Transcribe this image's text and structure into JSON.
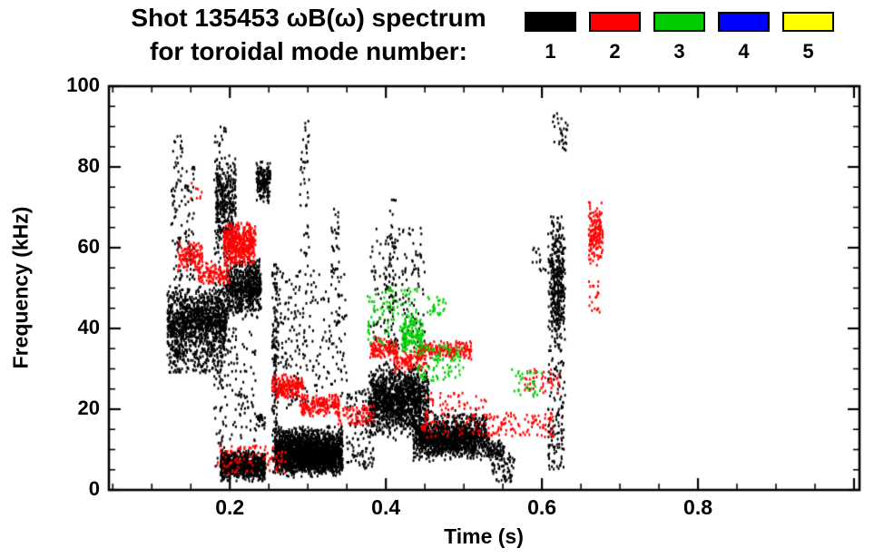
{
  "legend": {
    "items": [
      {
        "label": "1",
        "color": "#000000"
      },
      {
        "label": "2",
        "color": "#ff0000"
      },
      {
        "label": "3",
        "color": "#00cc00"
      },
      {
        "label": "4",
        "color": "#0000ff"
      },
      {
        "label": "5",
        "color": "#ffff00"
      }
    ]
  },
  "chart_data": {
    "type": "scatter",
    "title": "Shot 135453 ωB(ω) spectrum",
    "subtitle": "for toroidal mode number:",
    "xlabel": "Time (s)",
    "ylabel": "Frequency (kHz)",
    "xlim": [
      0.045,
      1.007
    ],
    "ylim": [
      0,
      100
    ],
    "x_major_ticks": [
      0.2,
      0.4,
      0.6,
      0.8,
      1.0
    ],
    "x_tick_labels": [
      {
        "v": 0.2,
        "label": "0.2"
      },
      {
        "v": 0.4,
        "label": "0.4"
      },
      {
        "v": 0.6,
        "label": "0.6"
      },
      {
        "v": 0.8,
        "label": "0.8"
      }
    ],
    "x_major_step": 0.2,
    "x_minor_step": 0.05,
    "y_major_ticks": [
      0,
      20,
      40,
      60,
      80,
      100
    ],
    "y_tick_labels": [
      {
        "v": 0,
        "label": "0"
      },
      {
        "v": 20,
        "label": "20"
      },
      {
        "v": 40,
        "label": "40"
      },
      {
        "v": 60,
        "label": "60"
      },
      {
        "v": 80,
        "label": "80"
      },
      {
        "v": 100,
        "label": "100"
      }
    ],
    "y_major_step": 20,
    "y_minor_step": 5,
    "grid": false,
    "legend_position": "top-right",
    "series": [
      {
        "name": "n=1",
        "mode": 1,
        "color": "#000000",
        "clusters": [
          {
            "t": [
              0.12,
              0.196
            ],
            "f": [
              33,
              51
            ],
            "n": 1100
          },
          {
            "t": [
              0.122,
              0.192
            ],
            "f": [
              29,
              35
            ],
            "n": 160,
            "u": true
          },
          {
            "t": [
              0.125,
              0.14
            ],
            "f": [
              52,
              88
            ],
            "n": 70,
            "u": true
          },
          {
            "t": [
              0.142,
              0.155
            ],
            "f": [
              52,
              80
            ],
            "n": 60,
            "u": true
          },
          {
            "t": [
              0.18,
              0.196
            ],
            "f": [
              5,
              90
            ],
            "n": 150,
            "u": true
          },
          {
            "t": [
              0.182,
              0.208
            ],
            "f": [
              58,
              83
            ],
            "n": 320
          },
          {
            "t": [
              0.195,
              0.24
            ],
            "f": [
              42,
              58
            ],
            "n": 650
          },
          {
            "t": [
              0.188,
              0.246
            ],
            "f": [
              2,
              10
            ],
            "n": 750
          },
          {
            "t": [
              0.196,
              0.234
            ],
            "f": [
              12,
              40
            ],
            "n": 90,
            "u": true
          },
          {
            "t": [
              0.234,
              0.252
            ],
            "f": [
              71,
              82
            ],
            "n": 170
          },
          {
            "t": [
              0.234,
              0.245
            ],
            "f": [
              15,
              20
            ],
            "n": 25
          },
          {
            "t": [
              0.254,
              0.262
            ],
            "f": [
              4,
              56
            ],
            "n": 160,
            "u": true
          },
          {
            "t": [
              0.258,
              0.345
            ],
            "f": [
              3,
              16
            ],
            "n": 1700
          },
          {
            "t": [
              0.265,
              0.335
            ],
            "f": [
              4,
              12
            ],
            "n": 800
          },
          {
            "t": [
              0.262,
              0.35
            ],
            "f": [
              20,
              55
            ],
            "n": 230,
            "u": true
          },
          {
            "t": [
              0.29,
              0.302
            ],
            "f": [
              55,
              92
            ],
            "n": 45,
            "u": true
          },
          {
            "t": [
              0.33,
              0.34
            ],
            "f": [
              30,
              70
            ],
            "n": 50,
            "u": true
          },
          {
            "t": [
              0.35,
              0.385
            ],
            "f": [
              5,
              25
            ],
            "n": 120,
            "u": true
          },
          {
            "t": [
              0.378,
              0.455
            ],
            "f": [
              12,
              32
            ],
            "n": 900
          },
          {
            "t": [
              0.385,
              0.445
            ],
            "f": [
              15,
              30
            ],
            "n": 450
          },
          {
            "t": [
              0.38,
              0.45
            ],
            "f": [
              35,
              65
            ],
            "n": 170,
            "u": true
          },
          {
            "t": [
              0.403,
              0.413
            ],
            "f": [
              30,
              73
            ],
            "n": 60,
            "u": true
          },
          {
            "t": [
              0.435,
              0.53
            ],
            "f": [
              7,
              20
            ],
            "n": 950
          },
          {
            "t": [
              0.445,
              0.515
            ],
            "f": [
              8,
              16
            ],
            "n": 400
          },
          {
            "t": [
              0.53,
              0.552
            ],
            "f": [
              7,
              13
            ],
            "n": 90
          },
          {
            "t": [
              0.535,
              0.565
            ],
            "f": [
              2,
              9
            ],
            "n": 70,
            "u": true
          },
          {
            "t": [
              0.588,
              0.606
            ],
            "f": [
              54,
              60
            ],
            "n": 15,
            "u": true
          },
          {
            "t": [
              0.608,
              0.63
            ],
            "f": [
              5,
              68
            ],
            "n": 280,
            "u": true
          },
          {
            "t": [
              0.612,
              0.628
            ],
            "f": [
              35,
              66
            ],
            "n": 240
          },
          {
            "t": [
              0.614,
              0.634
            ],
            "f": [
              84,
              94
            ],
            "n": 30,
            "u": true
          }
        ]
      },
      {
        "name": "n=2",
        "mode": 2,
        "color": "#ff0000",
        "clusters": [
          {
            "t": [
              0.133,
              0.165
            ],
            "f": [
              54,
              62
            ],
            "n": 120
          },
          {
            "t": [
              0.16,
              0.2
            ],
            "f": [
              50,
              57
            ],
            "n": 120
          },
          {
            "t": [
              0.192,
              0.233
            ],
            "f": [
              55,
              67
            ],
            "n": 450
          },
          {
            "t": [
              0.15,
              0.165
            ],
            "f": [
              72,
              78
            ],
            "n": 8,
            "u": true
          },
          {
            "t": [
              0.179,
              0.272
            ],
            "f": [
              4,
              11
            ],
            "n": 90,
            "u": true
          },
          {
            "t": [
              0.254,
              0.295
            ],
            "f": [
              22,
              29
            ],
            "n": 200
          },
          {
            "t": [
              0.29,
              0.34
            ],
            "f": [
              18,
              24
            ],
            "n": 180
          },
          {
            "t": [
              0.338,
              0.385
            ],
            "f": [
              16,
              21
            ],
            "n": 80,
            "u": true
          },
          {
            "t": [
              0.38,
              0.415
            ],
            "f": [
              32,
              38
            ],
            "n": 120
          },
          {
            "t": [
              0.41,
              0.452
            ],
            "f": [
              29,
              35
            ],
            "n": 110
          },
          {
            "t": [
              0.44,
              0.51
            ],
            "f": [
              32,
              37
            ],
            "n": 190
          },
          {
            "t": [
              0.446,
              0.533
            ],
            "f": [
              13,
              24
            ],
            "n": 110,
            "u": true
          },
          {
            "t": [
              0.533,
              0.615
            ],
            "f": [
              13,
              19
            ],
            "n": 90,
            "u": true
          },
          {
            "t": [
              0.578,
              0.622
            ],
            "f": [
              24,
              30
            ],
            "n": 45,
            "u": true
          },
          {
            "t": [
              0.66,
              0.678
            ],
            "f": [
              54,
              72
            ],
            "n": 160
          },
          {
            "t": [
              0.66,
              0.674
            ],
            "f": [
              44,
              52
            ],
            "n": 20,
            "u": true
          }
        ]
      },
      {
        "name": "n=3",
        "mode": 3,
        "color": "#00cc00",
        "clusters": [
          {
            "t": [
              0.376,
              0.44
            ],
            "f": [
              36,
              50
            ],
            "n": 110,
            "u": true
          },
          {
            "t": [
              0.42,
              0.448
            ],
            "f": [
              33,
              43
            ],
            "n": 130
          },
          {
            "t": [
              0.44,
              0.5
            ],
            "f": [
              27,
              36
            ],
            "n": 90,
            "u": true
          },
          {
            "t": [
              0.452,
              0.478
            ],
            "f": [
              43,
              48
            ],
            "n": 25,
            "u": true
          },
          {
            "t": [
              0.56,
              0.6
            ],
            "f": [
              23,
              30
            ],
            "n": 35,
            "u": true
          }
        ]
      },
      {
        "name": "n=4",
        "mode": 4,
        "color": "#0000ff",
        "clusters": []
      },
      {
        "name": "n=5",
        "mode": 5,
        "color": "#ffff00",
        "clusters": []
      }
    ]
  }
}
